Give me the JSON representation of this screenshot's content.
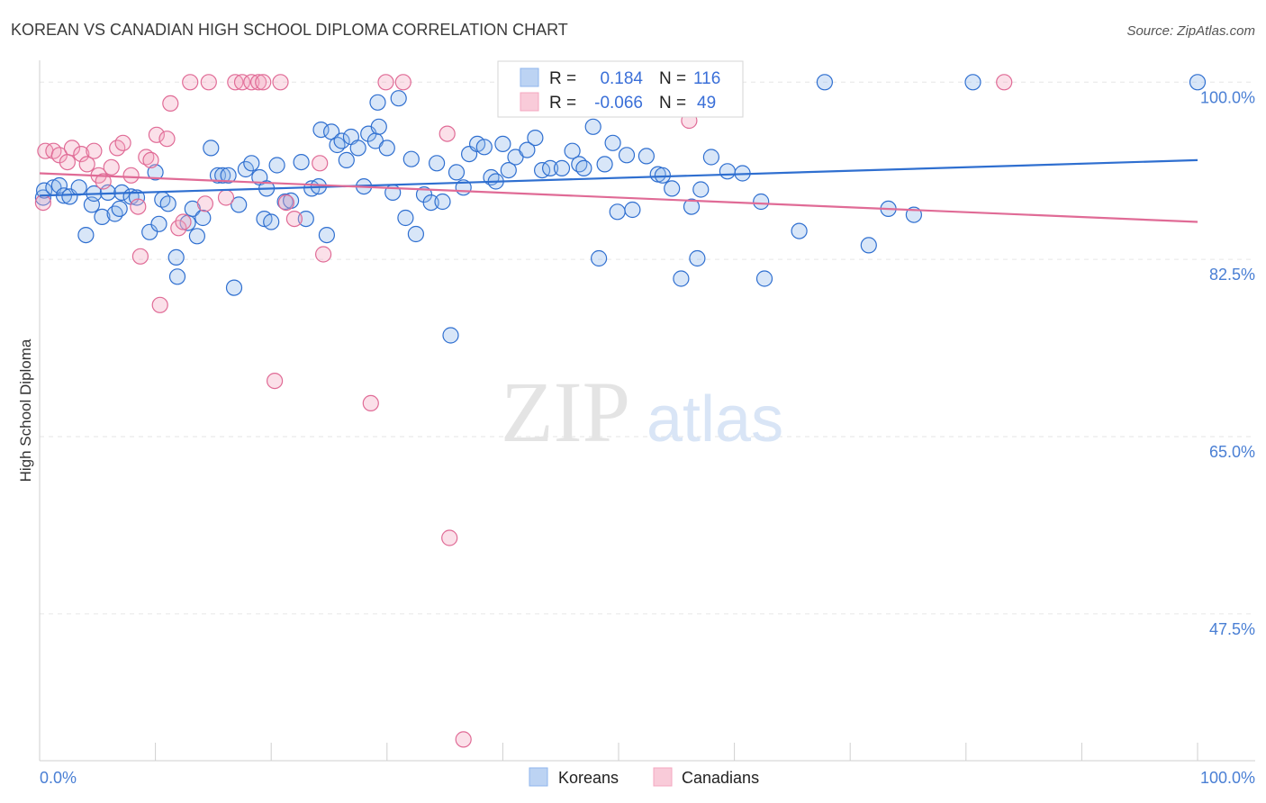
{
  "chart_data": {
    "type": "scatter",
    "title": "KOREAN VS CANADIAN HIGH SCHOOL DIPLOMA CORRELATION CHART",
    "source": "Source: ZipAtlas.com",
    "ylabel": "High School Diploma",
    "xlabel": "",
    "xlim": [
      0,
      100
    ],
    "ylim": [
      33,
      101
    ],
    "x_tick_labels": [
      "0.0%",
      "100.0%"
    ],
    "y_ticks": [
      {
        "value": 100.0,
        "label": "100.0%"
      },
      {
        "value": 82.5,
        "label": "82.5%"
      },
      {
        "value": 65.0,
        "label": "65.0%"
      },
      {
        "value": 47.5,
        "label": "47.5%"
      }
    ],
    "grid": true,
    "legend_position": "bottom",
    "watermark": {
      "zip": "ZIP",
      "atlas": "atlas"
    },
    "stats": [
      {
        "r_label": "R =",
        "r_value": "0.184",
        "n_label": "N =",
        "n_value": "116"
      },
      {
        "r_label": "R =",
        "r_value": "-0.066",
        "n_label": "N =",
        "n_value": "49"
      }
    ],
    "colors": {
      "koreans": "#8fb6ec",
      "koreans_line": "#2f6fd0",
      "canadians": "#f4a7c0",
      "canadians_line": "#e06b96"
    },
    "series": [
      {
        "name": "Koreans",
        "trend": {
          "x": [
            0,
            100
          ],
          "y": [
            88.8,
            92.3
          ]
        },
        "points": [
          [
            0.3,
            88.6
          ],
          [
            0.4,
            89.3
          ],
          [
            1.2,
            89.6
          ],
          [
            1.7,
            89.8
          ],
          [
            2.1,
            88.8
          ],
          [
            2.6,
            88.7
          ],
          [
            3.4,
            89.6
          ],
          [
            4.0,
            84.9
          ],
          [
            4.5,
            87.9
          ],
          [
            4.7,
            89.0
          ],
          [
            5.4,
            86.7
          ],
          [
            5.9,
            89.1
          ],
          [
            6.5,
            87.0
          ],
          [
            6.9,
            87.5
          ],
          [
            7.1,
            89.1
          ],
          [
            7.9,
            88.7
          ],
          [
            8.4,
            88.6
          ],
          [
            9.5,
            85.2
          ],
          [
            10.0,
            91.1
          ],
          [
            10.3,
            86.0
          ],
          [
            10.6,
            88.4
          ],
          [
            11.1,
            88.0
          ],
          [
            11.8,
            82.7
          ],
          [
            11.9,
            80.8
          ],
          [
            12.8,
            86.1
          ],
          [
            13.2,
            87.5
          ],
          [
            13.6,
            84.8
          ],
          [
            14.1,
            86.6
          ],
          [
            14.8,
            93.5
          ],
          [
            15.4,
            90.8
          ],
          [
            15.8,
            90.8
          ],
          [
            16.3,
            90.8
          ],
          [
            16.8,
            79.7
          ],
          [
            17.2,
            87.9
          ],
          [
            17.8,
            91.4
          ],
          [
            18.3,
            92.0
          ],
          [
            19.0,
            90.6
          ],
          [
            19.4,
            86.5
          ],
          [
            19.6,
            89.5
          ],
          [
            20.0,
            86.2
          ],
          [
            20.5,
            91.8
          ],
          [
            21.2,
            88.2
          ],
          [
            21.7,
            88.3
          ],
          [
            22.6,
            92.1
          ],
          [
            23.0,
            86.5
          ],
          [
            23.5,
            89.5
          ],
          [
            24.1,
            89.7
          ],
          [
            24.3,
            95.3
          ],
          [
            24.8,
            84.9
          ],
          [
            25.2,
            95.1
          ],
          [
            25.7,
            93.8
          ],
          [
            26.1,
            94.2
          ],
          [
            26.5,
            92.3
          ],
          [
            26.9,
            94.6
          ],
          [
            27.5,
            93.5
          ],
          [
            28.0,
            89.7
          ],
          [
            28.4,
            94.9
          ],
          [
            29.0,
            94.2
          ],
          [
            29.3,
            95.6
          ],
          [
            30.0,
            93.5
          ],
          [
            30.5,
            89.1
          ],
          [
            31.0,
            98.4
          ],
          [
            31.6,
            86.6
          ],
          [
            32.1,
            92.4
          ],
          [
            32.5,
            85.0
          ],
          [
            33.2,
            88.9
          ],
          [
            33.8,
            88.1
          ],
          [
            34.3,
            92.0
          ],
          [
            34.8,
            88.2
          ],
          [
            35.5,
            75.0
          ],
          [
            36.0,
            91.1
          ],
          [
            36.6,
            89.6
          ],
          [
            37.1,
            92.9
          ],
          [
            37.8,
            93.9
          ],
          [
            38.4,
            93.6
          ],
          [
            39.0,
            90.6
          ],
          [
            39.4,
            90.2
          ],
          [
            40.0,
            93.9
          ],
          [
            40.5,
            91.3
          ],
          [
            41.1,
            92.6
          ],
          [
            42.1,
            93.3
          ],
          [
            42.8,
            94.5
          ],
          [
            43.4,
            91.3
          ],
          [
            44.1,
            91.5
          ],
          [
            45.1,
            91.5
          ],
          [
            46.0,
            93.2
          ],
          [
            46.6,
            91.9
          ],
          [
            47.0,
            91.5
          ],
          [
            47.8,
            95.6
          ],
          [
            48.3,
            82.6
          ],
          [
            48.8,
            91.9
          ],
          [
            49.5,
            94.0
          ],
          [
            49.9,
            87.2
          ],
          [
            50.7,
            92.8
          ],
          [
            51.2,
            87.4
          ],
          [
            52.4,
            92.7
          ],
          [
            53.4,
            90.9
          ],
          [
            53.8,
            90.8
          ],
          [
            54.6,
            89.5
          ],
          [
            55.4,
            80.6
          ],
          [
            56.3,
            87.7
          ],
          [
            56.8,
            82.6
          ],
          [
            57.1,
            89.4
          ],
          [
            58.0,
            92.6
          ],
          [
            59.4,
            91.2
          ],
          [
            60.7,
            91.0
          ],
          [
            62.3,
            88.2
          ],
          [
            62.6,
            80.6
          ],
          [
            65.6,
            85.3
          ],
          [
            67.8,
            100.0
          ],
          [
            71.6,
            83.9
          ],
          [
            73.3,
            87.5
          ],
          [
            75.5,
            86.9
          ],
          [
            80.6,
            100.0
          ],
          [
            100.0,
            100.0
          ],
          [
            29.2,
            98.0
          ]
        ]
      },
      {
        "name": "Canadians",
        "trend": {
          "x": [
            0,
            100
          ],
          "y": [
            91.0,
            86.2
          ]
        },
        "points": [
          [
            0.3,
            88.1
          ],
          [
            0.5,
            93.2
          ],
          [
            1.2,
            93.2
          ],
          [
            1.7,
            92.8
          ],
          [
            2.4,
            92.1
          ],
          [
            2.8,
            93.5
          ],
          [
            3.6,
            92.9
          ],
          [
            4.1,
            91.9
          ],
          [
            4.7,
            93.2
          ],
          [
            5.1,
            90.8
          ],
          [
            5.5,
            90.2
          ],
          [
            6.2,
            91.6
          ],
          [
            6.7,
            93.5
          ],
          [
            7.2,
            94.0
          ],
          [
            7.9,
            90.8
          ],
          [
            8.5,
            87.7
          ],
          [
            8.7,
            82.8
          ],
          [
            9.2,
            92.6
          ],
          [
            9.6,
            92.3
          ],
          [
            10.1,
            94.8
          ],
          [
            10.4,
            78.0
          ],
          [
            11.0,
            94.4
          ],
          [
            11.3,
            97.9
          ],
          [
            12.0,
            85.6
          ],
          [
            12.4,
            86.2
          ],
          [
            13.0,
            100.0
          ],
          [
            14.3,
            88.0
          ],
          [
            14.6,
            100.0
          ],
          [
            16.1,
            88.6
          ],
          [
            16.9,
            100.0
          ],
          [
            17.5,
            100.0
          ],
          [
            18.3,
            100.0
          ],
          [
            18.9,
            100.0
          ],
          [
            19.3,
            100.0
          ],
          [
            20.3,
            70.5
          ],
          [
            20.8,
            100.0
          ],
          [
            21.3,
            88.1
          ],
          [
            22.0,
            86.5
          ],
          [
            24.2,
            92.0
          ],
          [
            24.5,
            83.0
          ],
          [
            28.6,
            68.3
          ],
          [
            29.9,
            100.0
          ],
          [
            31.4,
            100.0
          ],
          [
            35.2,
            94.9
          ],
          [
            35.4,
            55.0
          ],
          [
            36.6,
            35.1
          ],
          [
            47.9,
            100.0
          ],
          [
            56.1,
            96.2
          ],
          [
            83.3,
            100.0
          ]
        ]
      }
    ]
  }
}
